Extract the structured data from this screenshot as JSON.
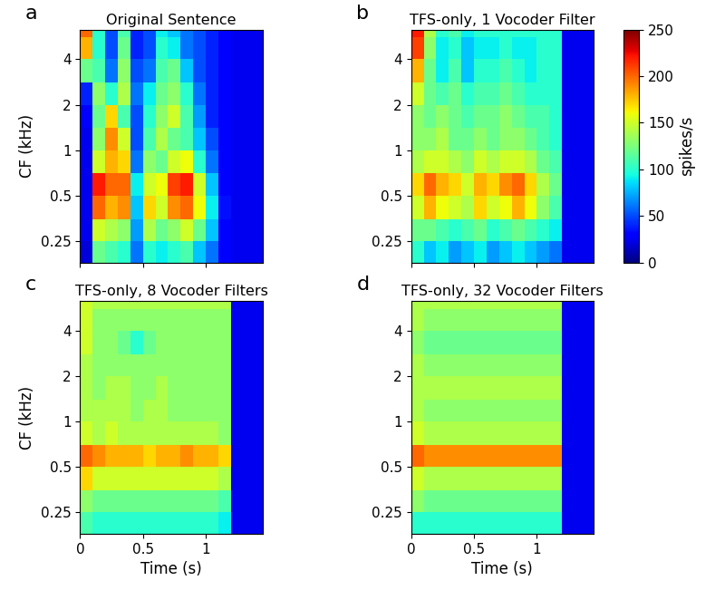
{
  "chart_data": [
    {
      "type": "heatmap",
      "label": "a",
      "title": "Original Sentence",
      "ylabel": "CF (kHz)",
      "tick_labels": "y",
      "log": "y",
      "xlim": [
        0,
        1.45
      ],
      "xticks": [
        0,
        0.5,
        1
      ],
      "ylim": [
        0.18,
        6.3
      ],
      "yticks": [
        0.25,
        0.5,
        1,
        2,
        4
      ],
      "time_edges": [
        0,
        0.1,
        0.2,
        0.3,
        0.4,
        0.5,
        0.6,
        0.7,
        0.8,
        0.9,
        1.0,
        1.1,
        1.2,
        1.3,
        1.4,
        1.45
      ],
      "cf_edges": [
        0.18,
        0.25,
        0.35,
        0.5,
        0.7,
        1.0,
        1.4,
        2.0,
        2.8,
        4.0,
        5.6,
        6.3
      ],
      "cells": [
        [
          20,
          120,
          110,
          100,
          60,
          100,
          90,
          100,
          110,
          80,
          60,
          30,
          25,
          25,
          25
        ],
        [
          25,
          150,
          140,
          130,
          70,
          140,
          120,
          130,
          150,
          120,
          80,
          30,
          25,
          25,
          25
        ],
        [
          25,
          200,
          180,
          190,
          80,
          170,
          150,
          190,
          200,
          160,
          90,
          35,
          25,
          25,
          25
        ],
        [
          25,
          220,
          200,
          200,
          90,
          150,
          160,
          210,
          220,
          150,
          80,
          30,
          25,
          25,
          25
        ],
        [
          25,
          150,
          180,
          170,
          60,
          130,
          120,
          150,
          160,
          100,
          60,
          30,
          25,
          25,
          25
        ],
        [
          25,
          130,
          190,
          150,
          50,
          110,
          140,
          120,
          110,
          80,
          50,
          30,
          25,
          25,
          25
        ],
        [
          30,
          120,
          170,
          110,
          50,
          100,
          130,
          150,
          110,
          70,
          40,
          30,
          25,
          25,
          25
        ],
        [
          40,
          130,
          100,
          140,
          60,
          90,
          120,
          130,
          100,
          60,
          40,
          30,
          25,
          25,
          25
        ],
        [
          120,
          110,
          60,
          130,
          50,
          60,
          110,
          120,
          80,
          50,
          40,
          30,
          25,
          25,
          25
        ],
        [
          180,
          100,
          50,
          120,
          40,
          50,
          100,
          90,
          60,
          50,
          40,
          30,
          25,
          25,
          25
        ],
        [
          200,
          100,
          50,
          110,
          40,
          50,
          90,
          80,
          60,
          50,
          40,
          30,
          25,
          25,
          25
        ]
      ]
    },
    {
      "type": "heatmap",
      "label": "b",
      "title": "TFS-only, 1 Vocoder Filter",
      "tick_labels": "y",
      "log": "y",
      "xlim": [
        0,
        1.45
      ],
      "xticks": [
        0,
        0.5,
        1
      ],
      "ylim": [
        0.18,
        6.3
      ],
      "yticks": [
        0.25,
        0.5,
        1,
        2,
        4
      ],
      "time_edges": [
        0,
        0.1,
        0.2,
        0.3,
        0.4,
        0.5,
        0.6,
        0.7,
        0.8,
        0.9,
        1.0,
        1.1,
        1.2,
        1.3,
        1.4,
        1.45
      ],
      "cf_edges": [
        0.18,
        0.25,
        0.35,
        0.5,
        0.7,
        1.0,
        1.4,
        2.0,
        2.8,
        4.0,
        5.6,
        6.3
      ],
      "cells": [
        [
          100,
          80,
          90,
          70,
          80,
          90,
          70,
          80,
          90,
          80,
          70,
          60,
          25,
          25,
          25
        ],
        [
          120,
          120,
          110,
          100,
          110,
          120,
          100,
          110,
          120,
          110,
          100,
          90,
          25,
          25,
          25
        ],
        [
          150,
          180,
          160,
          150,
          140,
          170,
          150,
          160,
          180,
          160,
          130,
          110,
          25,
          25,
          25
        ],
        [
          170,
          200,
          180,
          170,
          150,
          180,
          170,
          190,
          200,
          170,
          140,
          120,
          25,
          25,
          25
        ],
        [
          140,
          150,
          150,
          140,
          130,
          150,
          140,
          150,
          150,
          140,
          120,
          110,
          25,
          25,
          25
        ],
        [
          130,
          130,
          140,
          120,
          120,
          130,
          120,
          130,
          130,
          120,
          110,
          100,
          25,
          25,
          25
        ],
        [
          130,
          120,
          130,
          120,
          110,
          120,
          120,
          130,
          120,
          110,
          110,
          100,
          25,
          25,
          25
        ],
        [
          150,
          120,
          110,
          120,
          100,
          110,
          110,
          120,
          110,
          100,
          100,
          100,
          25,
          25,
          25
        ],
        [
          180,
          120,
          90,
          110,
          80,
          100,
          100,
          110,
          100,
          90,
          100,
          100,
          25,
          25,
          25
        ],
        [
          210,
          130,
          90,
          100,
          80,
          90,
          90,
          100,
          90,
          90,
          100,
          100,
          25,
          25,
          25
        ],
        [
          220,
          140,
          100,
          110,
          90,
          100,
          100,
          100,
          100,
          100,
          100,
          100,
          25,
          25,
          25
        ]
      ]
    },
    {
      "type": "heatmap",
      "label": "c",
      "title": "TFS-only, 8 Vocoder Filters",
      "xlabel": "Time (s)",
      "ylabel": "CF (kHz)",
      "log": "y",
      "xlim": [
        0,
        1.45
      ],
      "xticks": [
        0,
        0.5,
        1
      ],
      "ylim": [
        0.18,
        6.3
      ],
      "yticks": [
        0.25,
        0.5,
        1,
        2,
        4
      ],
      "time_edges": [
        0,
        0.1,
        0.2,
        0.3,
        0.4,
        0.5,
        0.6,
        0.7,
        0.8,
        0.9,
        1.0,
        1.1,
        1.2,
        1.3,
        1.4,
        1.45
      ],
      "cf_edges": [
        0.18,
        0.25,
        0.35,
        0.5,
        0.7,
        1.0,
        1.4,
        2.0,
        2.8,
        4.0,
        5.6,
        6.3
      ],
      "cells": [
        [
          110,
          100,
          100,
          100,
          100,
          100,
          100,
          100,
          100,
          100,
          100,
          90,
          25,
          25,
          25
        ],
        [
          130,
          120,
          120,
          120,
          120,
          120,
          120,
          120,
          120,
          120,
          120,
          110,
          25,
          25,
          25
        ],
        [
          170,
          150,
          150,
          150,
          150,
          150,
          150,
          150,
          150,
          150,
          150,
          140,
          25,
          25,
          25
        ],
        [
          200,
          190,
          180,
          180,
          180,
          170,
          180,
          180,
          190,
          180,
          180,
          170,
          25,
          25,
          25
        ],
        [
          150,
          140,
          150,
          140,
          140,
          140,
          140,
          140,
          140,
          140,
          140,
          130,
          25,
          25,
          25
        ],
        [
          140,
          140,
          140,
          140,
          130,
          140,
          140,
          130,
          130,
          130,
          130,
          130,
          25,
          25,
          25
        ],
        [
          140,
          130,
          140,
          140,
          130,
          130,
          140,
          130,
          130,
          130,
          130,
          130,
          25,
          25,
          25
        ],
        [
          140,
          130,
          130,
          130,
          130,
          130,
          130,
          130,
          130,
          130,
          130,
          130,
          25,
          25,
          25
        ],
        [
          150,
          130,
          130,
          120,
          100,
          120,
          130,
          130,
          130,
          130,
          130,
          130,
          25,
          25,
          25
        ],
        [
          150,
          130,
          130,
          130,
          130,
          130,
          130,
          130,
          130,
          130,
          130,
          130,
          25,
          25,
          25
        ],
        [
          150,
          140,
          140,
          140,
          140,
          140,
          140,
          140,
          140,
          140,
          140,
          140,
          25,
          25,
          25
        ]
      ]
    },
    {
      "type": "heatmap",
      "label": "d",
      "title": "TFS-only, 32 Vocoder Filters",
      "xlabel": "Time (s)",
      "log": "y",
      "xlim": [
        0,
        1.45
      ],
      "xticks": [
        0,
        0.5,
        1
      ],
      "ylim": [
        0.18,
        6.3
      ],
      "yticks": [
        0.25,
        0.5,
        1,
        2,
        4
      ],
      "time_edges": [
        0,
        0.1,
        0.2,
        0.3,
        0.4,
        0.5,
        0.6,
        0.7,
        0.8,
        0.9,
        1.0,
        1.1,
        1.2,
        1.3,
        1.4,
        1.45
      ],
      "cf_edges": [
        0.18,
        0.25,
        0.35,
        0.5,
        0.7,
        1.0,
        1.4,
        2.0,
        2.8,
        4.0,
        5.6,
        6.3
      ],
      "cells": [
        [
          100,
          100,
          100,
          100,
          100,
          100,
          100,
          100,
          100,
          100,
          100,
          100,
          25,
          25,
          25
        ],
        [
          130,
          120,
          120,
          120,
          120,
          120,
          120,
          120,
          120,
          120,
          120,
          120,
          25,
          25,
          25
        ],
        [
          150,
          140,
          140,
          140,
          140,
          140,
          140,
          140,
          140,
          140,
          140,
          140,
          25,
          25,
          25
        ],
        [
          200,
          190,
          190,
          190,
          190,
          190,
          190,
          190,
          190,
          190,
          190,
          190,
          25,
          25,
          25
        ],
        [
          150,
          140,
          140,
          140,
          140,
          140,
          140,
          140,
          140,
          140,
          140,
          140,
          25,
          25,
          25
        ],
        [
          140,
          130,
          130,
          130,
          130,
          130,
          130,
          130,
          130,
          130,
          130,
          130,
          25,
          25,
          25
        ],
        [
          140,
          140,
          140,
          140,
          140,
          140,
          140,
          140,
          140,
          140,
          140,
          140,
          25,
          25,
          25
        ],
        [
          140,
          130,
          130,
          130,
          130,
          130,
          130,
          130,
          130,
          130,
          130,
          130,
          25,
          25,
          25
        ],
        [
          130,
          120,
          120,
          120,
          120,
          120,
          120,
          120,
          120,
          120,
          120,
          120,
          25,
          25,
          25
        ],
        [
          140,
          130,
          130,
          130,
          130,
          130,
          130,
          130,
          130,
          130,
          130,
          130,
          25,
          25,
          25
        ],
        [
          140,
          140,
          140,
          140,
          140,
          140,
          140,
          140,
          140,
          140,
          140,
          140,
          25,
          25,
          25
        ]
      ]
    }
  ],
  "colorbar": {
    "label": "spikes/s",
    "range": [
      0,
      250
    ],
    "ticks": [
      0,
      50,
      100,
      150,
      200,
      250
    ]
  }
}
